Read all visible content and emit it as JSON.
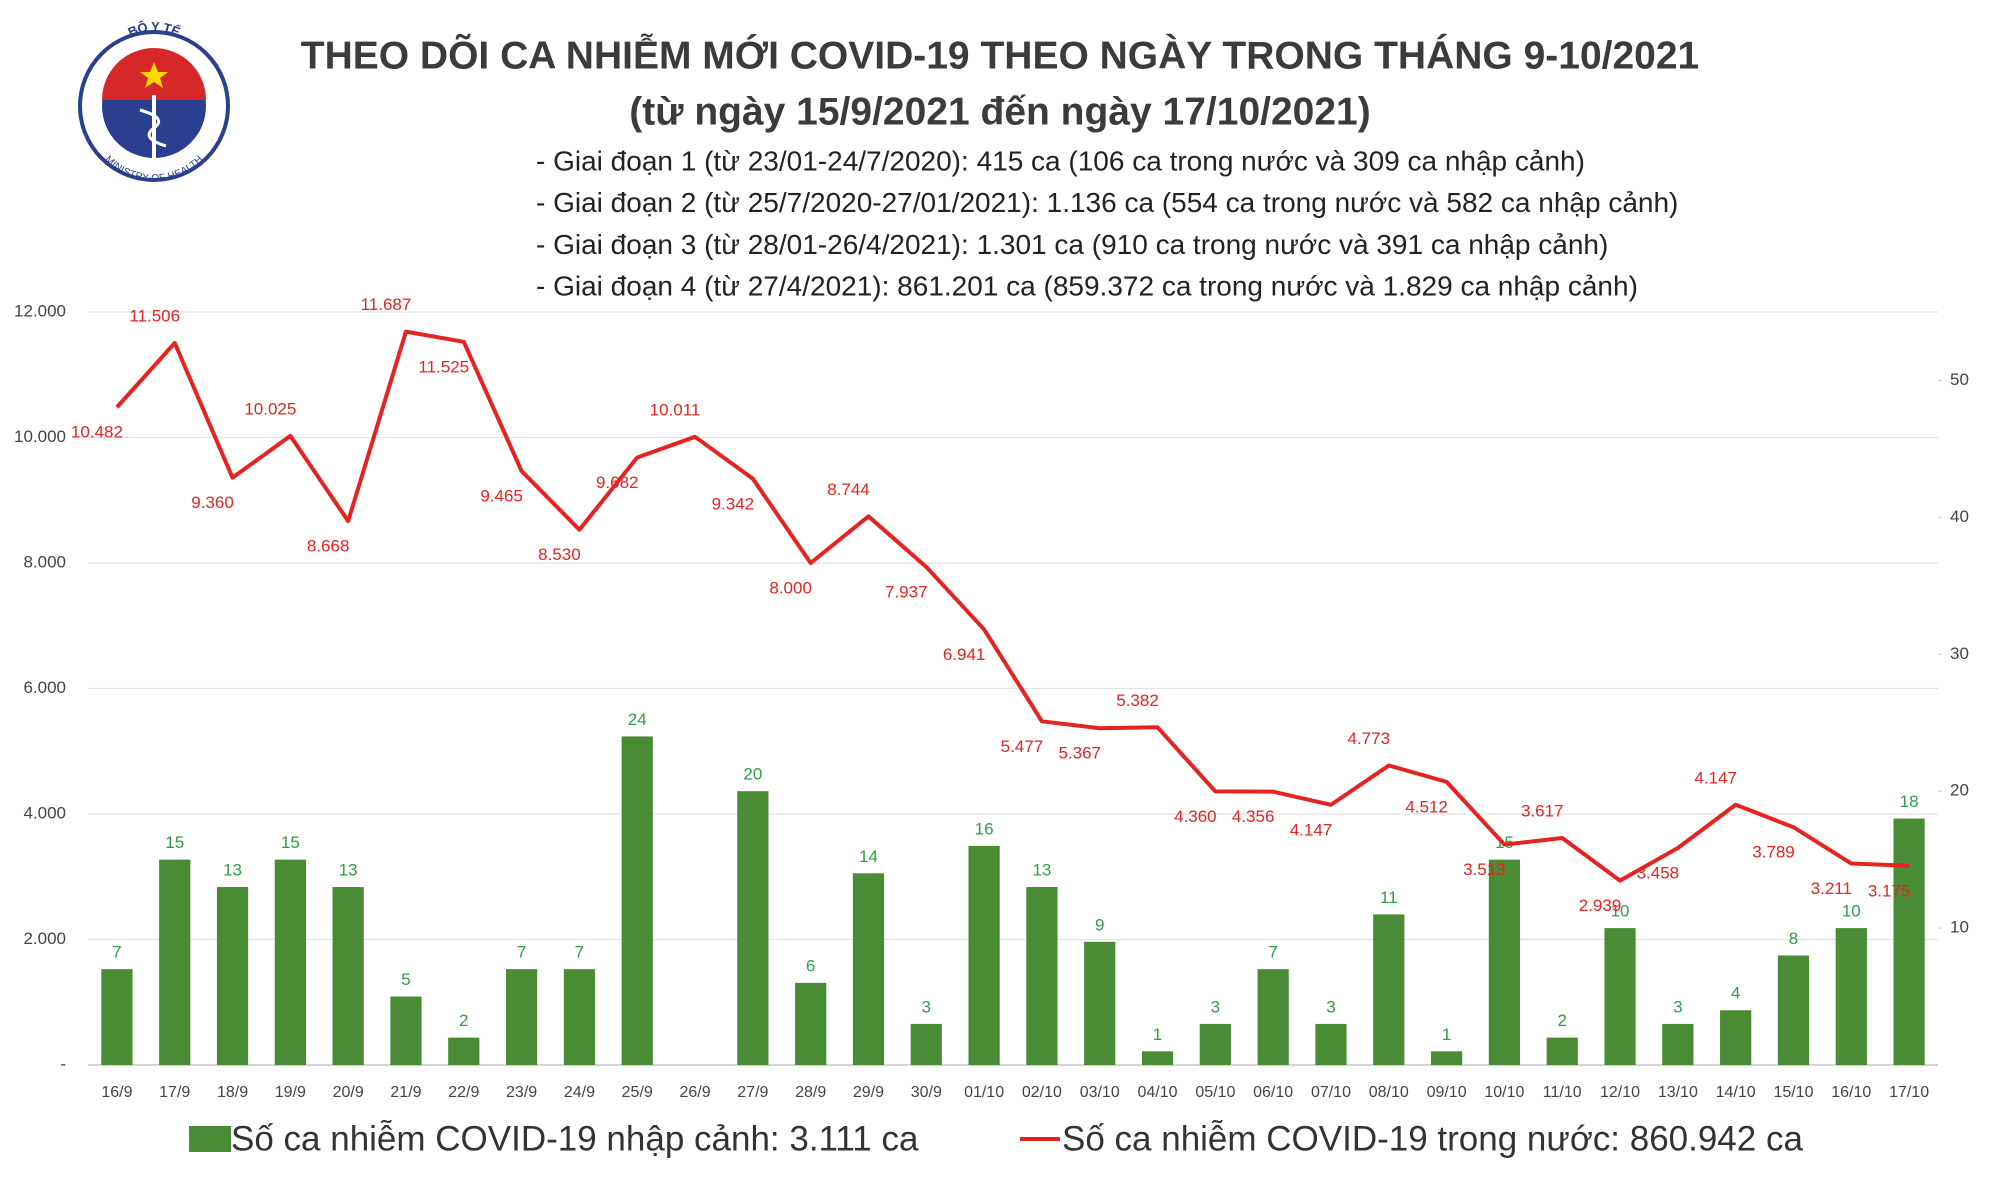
{
  "logo": {
    "top": "BỘ Y TẾ",
    "bottom": "MINISTRY OF HEALTH"
  },
  "chart_data": {
    "type": "combo",
    "title": "THEO DÕI CA NHIỄM MỚI COVID-19 THEO NGÀY TRONG THÁNG 9-10/2021",
    "subtitle": "(từ ngày 15/9/2021 đến ngày 17/10/2021)",
    "notes": [
      "- Giai đoạn 1 (từ 23/01-24/7/2020): 415 ca (106 ca trong nước và 309 ca nhập cảnh)",
      "- Giai đoạn 2 (từ 25/7/2020-27/01/2021): 1.136 ca (554 ca trong nước và 582 ca nhập cảnh)",
      "- Giai đoạn 3 (từ 28/01-26/4/2021): 1.301 ca (910 ca trong nước và 391 ca nhập cảnh)",
      "- Giai đoạn 4 (từ 27/4/2021): 861.201 ca (859.372 ca trong nước và 1.829 ca nhập cảnh)"
    ],
    "categories": [
      "16/9",
      "17/9",
      "18/9",
      "19/9",
      "20/9",
      "21/9",
      "22/9",
      "23/9",
      "24/9",
      "25/9",
      "26/9",
      "27/9",
      "28/9",
      "29/9",
      "30/9",
      "01/10",
      "02/10",
      "03/10",
      "04/10",
      "05/10",
      "06/10",
      "07/10",
      "08/10",
      "09/10",
      "10/10",
      "11/10",
      "12/10",
      "13/10",
      "14/10",
      "15/10",
      "16/10",
      "17/10"
    ],
    "series": [
      {
        "name": "Số ca nhiễm COVID-19 nhập cảnh: 3.111 ca",
        "type": "bar",
        "axis": "y2",
        "color": "#4a8b35",
        "label_color": "#2f9e46",
        "values": [
          7,
          15,
          13,
          15,
          13,
          5,
          2,
          7,
          7,
          24,
          null,
          20,
          6,
          14,
          3,
          16,
          13,
          9,
          1,
          3,
          7,
          3,
          11,
          1,
          15,
          2,
          10,
          3,
          4,
          8,
          10,
          18
        ]
      },
      {
        "name": "Số ca nhiễm COVID-19 trong nước: 860.942 ca",
        "type": "line",
        "color": "#e52421",
        "values": [
          10482,
          11506,
          9360,
          10025,
          8668,
          11687,
          11525,
          9465,
          8530,
          9682,
          10011,
          9342,
          8000,
          8744,
          7937,
          6941,
          5477,
          5367,
          5382,
          4360,
          4356,
          4147,
          4773,
          4512,
          3513,
          3617,
          2939,
          3458,
          4147,
          3789,
          3211,
          3175
        ],
        "value_labels": [
          "10.482",
          "11.506",
          "9.360",
          "10.025",
          "8.668",
          "11.687",
          "11.525",
          "9.465",
          "8.530",
          "9.682",
          "10.011",
          "9.342",
          "8.000",
          "8.744",
          "7.937",
          "6.941",
          "5.477",
          "5.367",
          "5.382",
          "4.360",
          "4.356",
          "4.147",
          "4.773",
          "4.512",
          "3.513",
          "3.617",
          "2.939",
          "3.458",
          "4.147",
          "3.789",
          "3.211",
          "3.175"
        ]
      }
    ],
    "ylim": [
      0,
      12000
    ],
    "yticks": [
      {
        "value": 0,
        "label": "-"
      },
      {
        "value": 2000,
        "label": "2.000"
      },
      {
        "value": 4000,
        "label": "4.000"
      },
      {
        "value": 6000,
        "label": "6.000"
      },
      {
        "value": 8000,
        "label": "8.000"
      },
      {
        "value": 10000,
        "label": "10.000"
      },
      {
        "value": 12000,
        "label": "12.000"
      }
    ],
    "y2lim": [
      0,
      55
    ],
    "y2ticks": [
      10,
      20,
      30,
      40,
      50
    ],
    "grid": true
  }
}
